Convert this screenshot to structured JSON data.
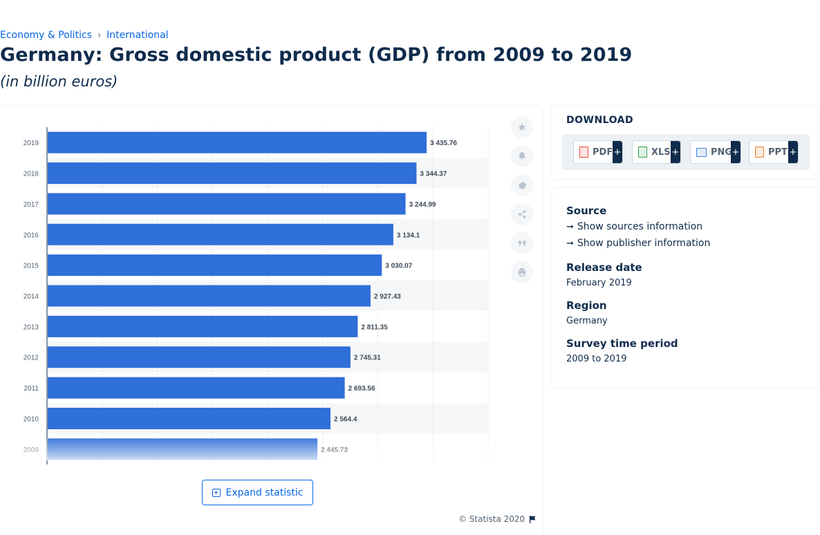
{
  "breadcrumb": {
    "item1": "Economy & Politics",
    "separator": "›",
    "item2": "International"
  },
  "title": "Germany: Gross domestic product (GDP) from 2009 to 2019",
  "subtitle": "(in billion euros)",
  "chart_data": {
    "type": "bar",
    "orientation": "horizontal",
    "categories": [
      "2019",
      "2018",
      "2017",
      "2016",
      "2015",
      "2014",
      "2013",
      "2012",
      "2011",
      "2010",
      "2009"
    ],
    "values": [
      3435.76,
      3344.37,
      3244.99,
      3134.1,
      3030.07,
      2927.43,
      2811.35,
      2745.31,
      2693.56,
      2564.4,
      2445.73
    ],
    "data_labels": [
      "3 435.76",
      "3 344.37",
      "3 244.99",
      "3 134.1",
      "3 030.07",
      "2 927.43",
      "2 811.35",
      "2 745.31",
      "2 693.56",
      "2 564.4",
      "2 445.73"
    ],
    "xlim": [
      0,
      4000
    ],
    "grid": true,
    "bar_color": "#2f6fd8"
  },
  "tools": {
    "icons": [
      "star-icon",
      "bell-icon",
      "gear-icon",
      "share-icon",
      "quote-icon",
      "print-icon"
    ]
  },
  "expand_label": "Expand statistic",
  "copyright": "© Statista 2020",
  "download": {
    "title": "DOWNLOAD",
    "buttons": [
      {
        "label": "PDF",
        "plus": "+",
        "color": "#e94b3c"
      },
      {
        "label": "XLS",
        "plus": "+",
        "color": "#3a9b47"
      },
      {
        "label": "PNG",
        "plus": "+",
        "color": "#3f7fd6"
      },
      {
        "label": "PPT",
        "plus": "+",
        "color": "#e97f2c"
      }
    ]
  },
  "info": {
    "source_label": "Source",
    "show_sources": "Show sources information",
    "show_publisher": "Show publisher information",
    "release_label": "Release date",
    "release_value": "February 2019",
    "region_label": "Region",
    "region_value": "Germany",
    "period_label": "Survey time period",
    "period_value": "2009 to 2019"
  }
}
